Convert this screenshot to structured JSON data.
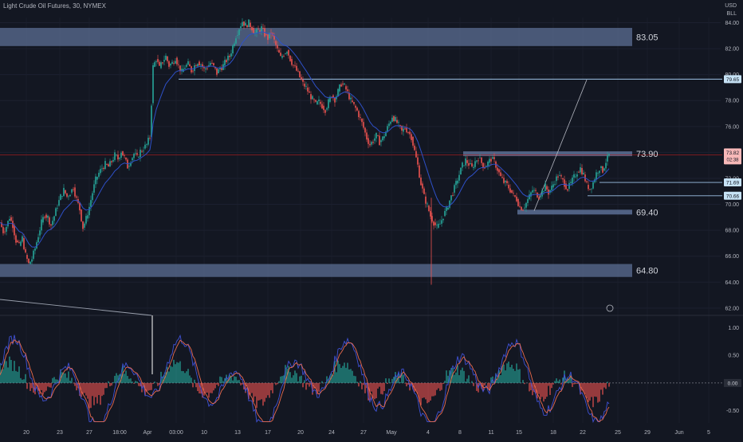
{
  "header": {
    "symbol_title": "Light Crude Oil Futures, 30, NYMEX",
    "currency": "USD",
    "unit": "BLL"
  },
  "colors": {
    "background": "#131722",
    "zone": "#5c6f94",
    "up": "#26a69a",
    "down": "#ef5350",
    "price_line": "#b71c1c",
    "level_line": "#9ec3e6",
    "level_tag": "#c6e2f5",
    "current_tag": "#f7b8b8",
    "ma": "#2e50c8",
    "osc_line_blue": "#3f51d5",
    "osc_line_red": "#e86a4e"
  },
  "chart_data": {
    "type": "candlestick",
    "title": "Light Crude Oil Futures, 30, NYMEX",
    "price_axis": {
      "ticks": [
        "84.00",
        "82.00",
        "80.00",
        "78.00",
        "76.00",
        "74.00",
        "72.00",
        "70.00",
        "68.00",
        "66.00",
        "64.00",
        "62.00"
      ],
      "ylim": [
        61.5,
        84.4
      ]
    },
    "time_axis": {
      "ticks": [
        "20",
        "23",
        "27",
        "18:00",
        "Apr",
        "03:00",
        "10",
        "13",
        "17",
        "20",
        "24",
        "27",
        "May",
        "4",
        "8",
        "11",
        "15",
        "18",
        "22",
        "25",
        "29",
        "Jun",
        "5"
      ]
    },
    "zones": [
      {
        "label": "83.05",
        "low": 82.2,
        "high": 83.6
      },
      {
        "label": "64.80",
        "low": 64.4,
        "high": 65.4
      }
    ],
    "levels": [
      {
        "label": "73.90",
        "value": 73.9
      },
      {
        "label": "69.40",
        "value": 69.4
      }
    ],
    "price_tags": [
      {
        "label": "79.65",
        "value": 79.65,
        "kind": "level"
      },
      {
        "label": "71.69",
        "value": 71.69,
        "kind": "level"
      },
      {
        "label": "70.66",
        "value": 70.66,
        "kind": "level"
      },
      {
        "label": "73.82",
        "sublabel": "02:38",
        "value": 73.82,
        "kind": "current"
      }
    ],
    "series_close": [
      [
        0,
        68.6
      ],
      [
        4,
        67.9
      ],
      [
        8,
        68.3
      ],
      [
        12,
        69.0
      ],
      [
        16,
        68.4
      ],
      [
        20,
        67.2
      ],
      [
        24,
        66.8
      ],
      [
        28,
        67.4
      ],
      [
        32,
        66.1
      ],
      [
        36,
        65.4
      ],
      [
        40,
        65.8
      ],
      [
        44,
        66.6
      ],
      [
        48,
        67.6
      ],
      [
        52,
        68.6
      ],
      [
        56,
        69.2
      ],
      [
        60,
        69.0
      ],
      [
        64,
        68.4
      ],
      [
        68,
        69.1
      ],
      [
        72,
        69.9
      ],
      [
        76,
        70.6
      ],
      [
        80,
        71.1
      ],
      [
        84,
        70.6
      ],
      [
        88,
        70.9
      ],
      [
        92,
        71.3
      ],
      [
        96,
        70.4
      ],
      [
        100,
        69.6
      ],
      [
        104,
        68.2
      ],
      [
        108,
        68.9
      ],
      [
        112,
        69.8
      ],
      [
        116,
        70.9
      ],
      [
        120,
        71.9
      ],
      [
        124,
        72.4
      ],
      [
        128,
        72.8
      ],
      [
        132,
        73.1
      ],
      [
        136,
        72.9
      ],
      [
        140,
        73.3
      ],
      [
        144,
        73.8
      ],
      [
        148,
        73.5
      ],
      [
        152,
        74.1
      ],
      [
        156,
        73.6
      ],
      [
        160,
        72.9
      ],
      [
        164,
        73.4
      ],
      [
        168,
        73.9
      ],
      [
        172,
        73.6
      ],
      [
        176,
        74.1
      ],
      [
        180,
        74.3
      ],
      [
        184,
        74.6
      ],
      [
        188,
        75.2
      ],
      [
        190,
        77.8
      ],
      [
        192,
        80.6
      ],
      [
        196,
        81.2
      ],
      [
        200,
        80.5
      ],
      [
        204,
        81.0
      ],
      [
        208,
        81.4
      ],
      [
        212,
        80.7
      ],
      [
        216,
        80.9
      ],
      [
        220,
        81.3
      ],
      [
        224,
        80.7
      ],
      [
        228,
        80.2
      ],
      [
        232,
        80.6
      ],
      [
        236,
        80.8
      ],
      [
        240,
        80.3
      ],
      [
        244,
        80.7
      ],
      [
        248,
        81.0
      ],
      [
        252,
        80.8
      ],
      [
        256,
        80.4
      ],
      [
        260,
        80.6
      ],
      [
        264,
        80.9
      ],
      [
        268,
        80.6
      ],
      [
        272,
        80.1
      ],
      [
        276,
        80.5
      ],
      [
        280,
        80.7
      ],
      [
        284,
        81.1
      ],
      [
        288,
        81.4
      ],
      [
        292,
        82.2
      ],
      [
        296,
        83.0
      ],
      [
        300,
        83.6
      ],
      [
        304,
        84.1
      ],
      [
        308,
        83.8
      ],
      [
        312,
        84.0
      ],
      [
        316,
        83.6
      ],
      [
        320,
        83.2
      ],
      [
        324,
        83.4
      ],
      [
        328,
        83.6
      ],
      [
        332,
        83.1
      ],
      [
        336,
        82.8
      ],
      [
        340,
        83.2
      ],
      [
        344,
        82.6
      ],
      [
        348,
        81.9
      ],
      [
        352,
        81.3
      ],
      [
        356,
        81.6
      ],
      [
        360,
        81.9
      ],
      [
        364,
        81.2
      ],
      [
        368,
        80.7
      ],
      [
        372,
        80.3
      ],
      [
        376,
        79.8
      ],
      [
        380,
        79.3
      ],
      [
        384,
        79.0
      ],
      [
        388,
        78.5
      ],
      [
        392,
        78.1
      ],
      [
        396,
        77.7
      ],
      [
        400,
        77.9
      ],
      [
        404,
        77.6
      ],
      [
        408,
        77.3
      ],
      [
        412,
        77.9
      ],
      [
        416,
        78.4
      ],
      [
        420,
        78.1
      ],
      [
        424,
        78.7
      ],
      [
        428,
        79.3
      ],
      [
        432,
        79.1
      ],
      [
        436,
        78.6
      ],
      [
        440,
        78.0
      ],
      [
        444,
        77.6
      ],
      [
        448,
        77.2
      ],
      [
        452,
        76.6
      ],
      [
        456,
        75.9
      ],
      [
        460,
        75.1
      ],
      [
        464,
        74.6
      ],
      [
        468,
        74.9
      ],
      [
        472,
        75.3
      ],
      [
        476,
        74.8
      ],
      [
        480,
        75.1
      ],
      [
        484,
        75.6
      ],
      [
        488,
        76.2
      ],
      [
        492,
        76.8
      ],
      [
        496,
        76.5
      ],
      [
        500,
        76.1
      ],
      [
        504,
        75.6
      ],
      [
        508,
        75.9
      ],
      [
        512,
        75.6
      ],
      [
        516,
        75.2
      ],
      [
        520,
        74.1
      ],
      [
        524,
        73.0
      ],
      [
        528,
        71.6
      ],
      [
        532,
        70.6
      ],
      [
        536,
        69.9
      ],
      [
        540,
        69.1
      ],
      [
        544,
        68.6
      ],
      [
        548,
        68.2
      ],
      [
        552,
        68.5
      ],
      [
        556,
        69.1
      ],
      [
        560,
        69.6
      ],
      [
        564,
        70.3
      ],
      [
        568,
        70.9
      ],
      [
        572,
        71.6
      ],
      [
        576,
        72.3
      ],
      [
        580,
        73.0
      ],
      [
        584,
        73.4
      ],
      [
        588,
        73.1
      ],
      [
        592,
        72.8
      ],
      [
        596,
        73.3
      ],
      [
        600,
        73.6
      ],
      [
        604,
        73.2
      ],
      [
        608,
        72.9
      ],
      [
        612,
        73.2
      ],
      [
        616,
        73.5
      ],
      [
        620,
        73.3
      ],
      [
        624,
        72.7
      ],
      [
        628,
        72.1
      ],
      [
        632,
        71.7
      ],
      [
        636,
        71.5
      ],
      [
        640,
        71.1
      ],
      [
        644,
        70.7
      ],
      [
        648,
        70.4
      ],
      [
        652,
        69.8
      ],
      [
        656,
        69.7
      ],
      [
        660,
        70.1
      ],
      [
        664,
        70.6
      ],
      [
        668,
        71.1
      ],
      [
        672,
        70.9
      ],
      [
        676,
        70.6
      ],
      [
        680,
        71.0
      ],
      [
        684,
        71.4
      ],
      [
        688,
        70.9
      ],
      [
        692,
        71.3
      ],
      [
        696,
        71.8
      ],
      [
        700,
        72.2
      ],
      [
        704,
        72.0
      ],
      [
        708,
        71.6
      ],
      [
        712,
        71.2
      ],
      [
        716,
        71.6
      ],
      [
        720,
        72.1
      ],
      [
        724,
        72.5
      ],
      [
        728,
        72.8
      ],
      [
        732,
        72.3
      ],
      [
        736,
        71.5
      ],
      [
        740,
        71.2
      ],
      [
        744,
        71.7
      ],
      [
        748,
        72.4
      ],
      [
        752,
        72.8
      ],
      [
        756,
        72.6
      ],
      [
        760,
        73.3
      ],
      [
        764,
        73.8
      ]
    ],
    "spike_low": {
      "x": 541,
      "value": 63.8
    },
    "projection_line": {
      "from": [
        670,
        69.5
      ],
      "to": [
        736,
        79.6
      ]
    },
    "oscillator": {
      "ticks": [
        "1.00",
        "0.50",
        "0.00",
        "-0.50"
      ],
      "ylim": [
        -0.72,
        1.22
      ],
      "zero_label": "0.00"
    }
  }
}
